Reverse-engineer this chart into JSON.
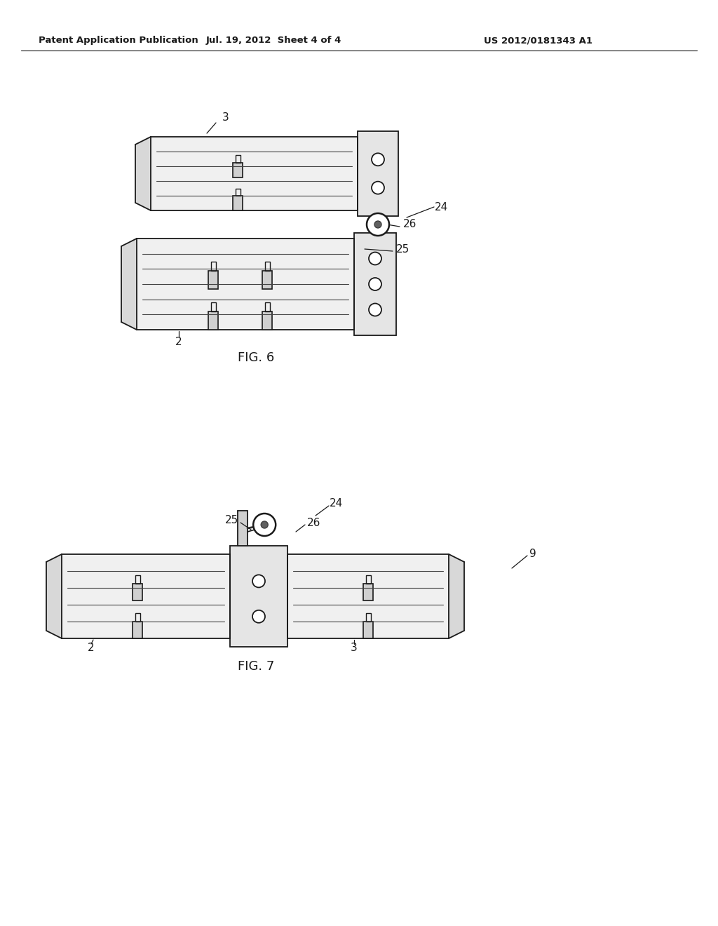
{
  "bg_color": "#ffffff",
  "header_left": "Patent Application Publication",
  "header_mid": "Jul. 19, 2012  Sheet 4 of 4",
  "header_right": "US 2012/0181343 A1",
  "fig6_label": "FIG. 6",
  "fig7_label": "FIG. 7",
  "line_color": "#1a1a1a",
  "fill_light": "#f0f0f0",
  "fill_taper": "#d8d8d8"
}
